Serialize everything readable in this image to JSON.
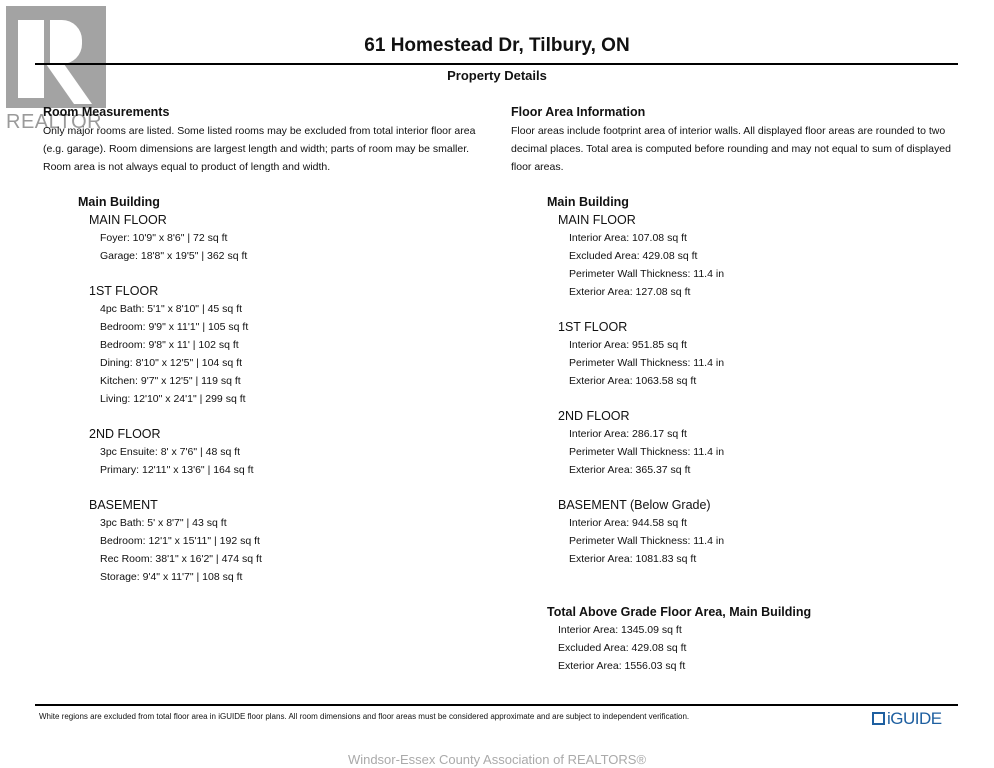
{
  "logo": {
    "text": "REALTOR"
  },
  "header": {
    "title": "61 Homestead Dr, Tilbury, ON",
    "subtitle": "Property Details"
  },
  "left": {
    "heading": "Room Measurements",
    "description": "Only major rooms are listed. Some listed rooms may be excluded from total interior floor area (e.g. garage). Room dimensions are largest length and width; parts of room may be smaller. Room area is not always equal to product of length and width.",
    "building": "Main Building",
    "floors": [
      {
        "name": "MAIN FLOOR",
        "items": [
          "Foyer: 10'9\" x 8'6\" | 72 sq ft",
          "Garage: 18'8\" x 19'5\" | 362 sq ft"
        ]
      },
      {
        "name": "1ST FLOOR",
        "items": [
          "4pc Bath: 5'1\" x 8'10\" | 45 sq ft",
          "Bedroom: 9'9\" x 11'1\" | 105 sq ft",
          "Bedroom: 9'8\" x 11' | 102 sq ft",
          "Dining: 8'10\" x 12'5\" | 104 sq ft",
          "Kitchen: 9'7\" x 12'5\" | 119 sq ft",
          "Living: 12'10\" x 24'1\" | 299 sq ft"
        ]
      },
      {
        "name": "2ND FLOOR",
        "items": [
          "3pc Ensuite: 8' x 7'6\" | 48 sq ft",
          "Primary: 12'11\" x 13'6\" | 164 sq ft"
        ]
      },
      {
        "name": "BASEMENT",
        "items": [
          "3pc Bath: 5' x 8'7\" | 43 sq ft",
          "Bedroom: 12'1\" x 15'11\" | 192 sq ft",
          "Rec Room: 38'1\" x 16'2\" | 474 sq ft",
          "Storage: 9'4\" x 11'7\" | 108 sq ft"
        ]
      }
    ]
  },
  "right": {
    "heading": "Floor Area Information",
    "description": "Floor areas include footprint area of interior walls. All displayed floor areas are rounded to two decimal places. Total area is computed before rounding and may not equal to sum of displayed floor areas.",
    "building": "Main Building",
    "floors": [
      {
        "name": "MAIN FLOOR",
        "items": [
          "Interior Area: 107.08 sq ft",
          "Excluded Area: 429.08 sq ft",
          "Perimeter Wall Thickness: 11.4 in",
          "Exterior Area: 127.08 sq ft"
        ]
      },
      {
        "name": "1ST FLOOR",
        "items": [
          "Interior Area: 951.85 sq ft",
          "Perimeter Wall Thickness: 11.4 in",
          "Exterior Area: 1063.58 sq ft"
        ]
      },
      {
        "name": "2ND FLOOR",
        "items": [
          "Interior Area: 286.17 sq ft",
          "Perimeter Wall Thickness: 11.4 in",
          "Exterior Area: 365.37 sq ft"
        ]
      },
      {
        "name": "BASEMENT (Below Grade)",
        "items": [
          "Interior Area: 944.58 sq ft",
          "Perimeter Wall Thickness: 11.4 in",
          "Exterior Area: 1081.83 sq ft"
        ]
      }
    ],
    "total": {
      "heading": "Total Above Grade Floor Area, Main Building",
      "items": [
        "Interior Area: 1345.09 sq ft",
        "Excluded Area: 429.08 sq ft",
        "Exterior Area: 1556.03 sq ft"
      ]
    }
  },
  "footer": {
    "note": "White regions are excluded from total floor area in iGUIDE floor plans. All room dimensions and floor areas must be considered approximate and are subject to independent verification.",
    "brand": "iGUIDE",
    "brand_color": "#1e5fa0"
  },
  "watermark": "Windsor-Essex County Association of REALTORS®"
}
